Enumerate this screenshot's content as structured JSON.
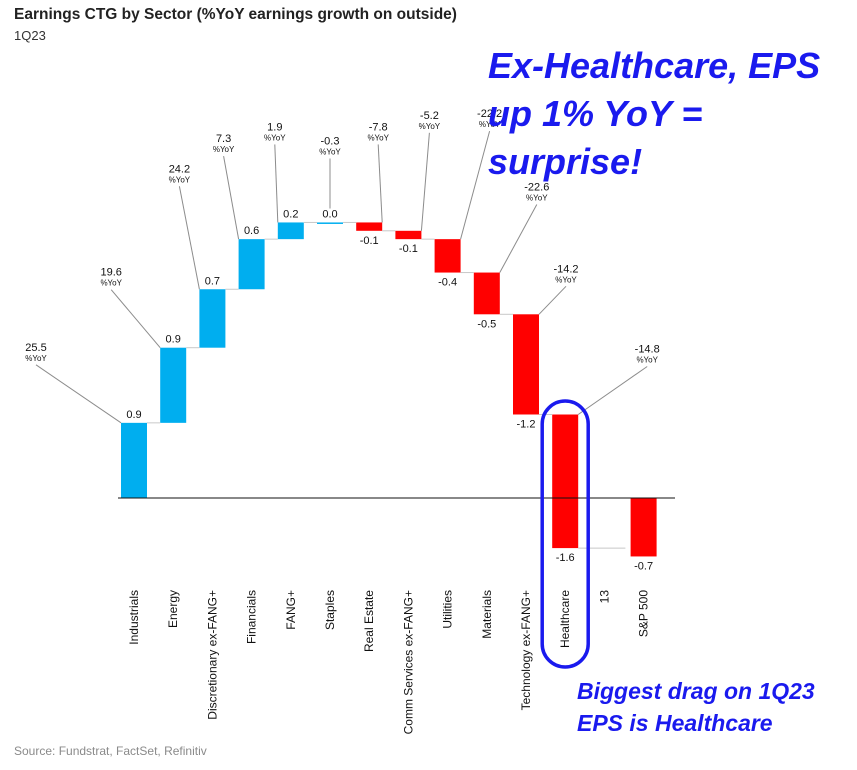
{
  "header": {
    "title": "Earnings CTG by Sector (%YoY earnings growth on outside)",
    "subtitle": "1Q23"
  },
  "callouts": {
    "top_line1": "Ex-Healthcare, EPS",
    "top_line2": "up 1% YoY = surprise!",
    "bottom_line1": "Biggest drag on 1Q23",
    "bottom_line2": "EPS is Healthcare"
  },
  "footer": {
    "source": "Source: Fundstrat, FactSet, Refinitiv"
  },
  "colors": {
    "positive": "#00aeef",
    "negative": "#ff0000",
    "highlight": "#1a1aee"
  },
  "chart_data": {
    "type": "bar",
    "subtype": "waterfall",
    "categories": [
      "Industrials",
      "Energy",
      "Discretionary ex-FANG+",
      "Financials",
      "FANG+",
      "Staples",
      "Real Estate",
      "Comm Services ex-FANG+",
      "Utilities",
      "Materials",
      "Technology ex-FANG+",
      "Healthcare",
      "13",
      "S&P 500"
    ],
    "values": [
      0.9,
      0.9,
      0.7,
      0.6,
      0.2,
      0.0,
      -0.1,
      -0.1,
      -0.4,
      -0.5,
      -1.2,
      -1.6,
      null,
      -0.7
    ],
    "value_labels": [
      "0.9",
      "0.9",
      "0.7",
      "0.6",
      "0.2",
      "0.0",
      "-0.1",
      "-0.1",
      "-0.4",
      "-0.5",
      "-1.2",
      "-1.6",
      "",
      "-0.7"
    ],
    "yoy_growth": [
      "25.5",
      "19.6",
      "24.2",
      "7.3",
      "1.9",
      "-0.3",
      "-7.8",
      "-5.2",
      "-22.2",
      "-22.6",
      "-14.2",
      "-14.8",
      "",
      ""
    ],
    "yoy_unit": "%YoY",
    "highlighted_category": "Healthcare",
    "grid": false,
    "legend": "none"
  }
}
